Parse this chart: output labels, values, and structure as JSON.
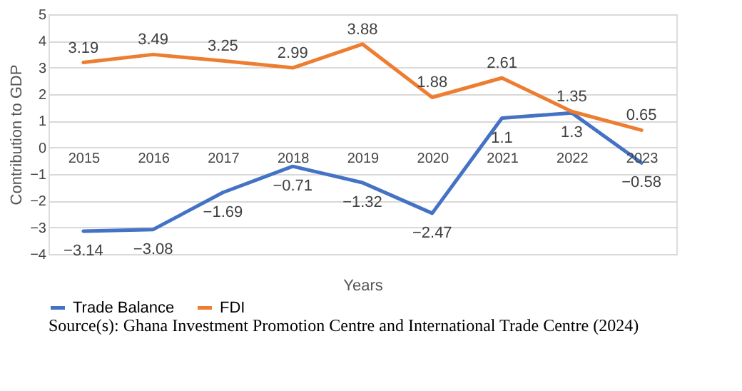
{
  "chart_data": {
    "type": "line",
    "xlabel": "Years",
    "ylabel": "Contribution to GDP",
    "categories": [
      "2015",
      "2016",
      "2017",
      "2018",
      "2019",
      "2020",
      "2021",
      "2022",
      "2023"
    ],
    "series": [
      {
        "name": "Trade Balance",
        "color": "#4472c4",
        "values": [
          -3.14,
          -3.08,
          -1.69,
          -0.71,
          -1.32,
          -2.47,
          1.1,
          1.3,
          -0.58
        ],
        "value_labels": [
          "−3.14",
          "−3.08",
          "−1.69",
          "−0.71",
          "−1.32",
          "−2.47",
          "1.1",
          "1.3",
          "−0.58"
        ]
      },
      {
        "name": "FDI",
        "color": "#ed7d31",
        "values": [
          3.19,
          3.49,
          3.25,
          2.99,
          3.88,
          1.88,
          2.61,
          1.35,
          0.65
        ],
        "value_labels": [
          "3.19",
          "3.49",
          "3.25",
          "2.99",
          "3.88",
          "1.88",
          "2.61",
          "1.35",
          "0.65"
        ]
      }
    ],
    "ylim": [
      -4,
      5
    ],
    "yticks": [
      {
        "value": -4,
        "label": "−4"
      },
      {
        "value": -3,
        "label": "−3"
      },
      {
        "value": -2,
        "label": "−2"
      },
      {
        "value": -1,
        "label": "−1"
      },
      0,
      1,
      2,
      3,
      4,
      5
    ],
    "grid": "y",
    "legend": "bottom",
    "marker": "none",
    "line_style": "solid",
    "annotations": [
      "Source(s): Ghana Investment Promotion Centre and International Trade Centre (2024)"
    ]
  }
}
